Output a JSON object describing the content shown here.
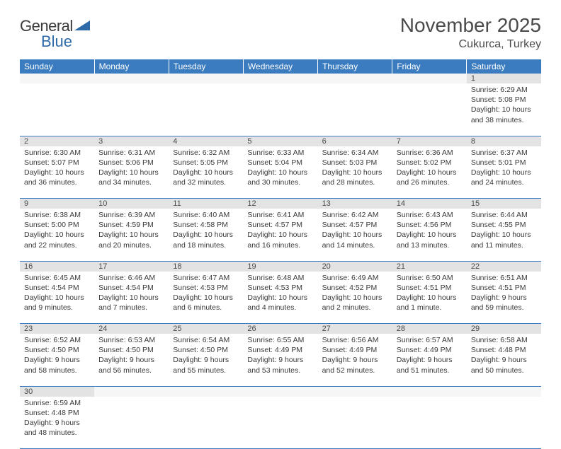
{
  "logo": {
    "part1": "General",
    "part2": "Blue"
  },
  "title": "November 2025",
  "location": "Cukurca, Turkey",
  "colors": {
    "header_bg": "#3b7bbf",
    "header_text": "#ffffff",
    "daynum_bg": "#e3e3e3",
    "rule": "#3b7bbf",
    "logo_accent": "#2f6aa8",
    "text": "#3a3a3a"
  },
  "weekdays": [
    "Sunday",
    "Monday",
    "Tuesday",
    "Wednesday",
    "Thursday",
    "Friday",
    "Saturday"
  ],
  "weeks": [
    [
      null,
      null,
      null,
      null,
      null,
      null,
      {
        "n": "1",
        "sr": "6:29 AM",
        "ss": "5:08 PM",
        "dl": "10 hours and 38 minutes."
      }
    ],
    [
      {
        "n": "2",
        "sr": "6:30 AM",
        "ss": "5:07 PM",
        "dl": "10 hours and 36 minutes."
      },
      {
        "n": "3",
        "sr": "6:31 AM",
        "ss": "5:06 PM",
        "dl": "10 hours and 34 minutes."
      },
      {
        "n": "4",
        "sr": "6:32 AM",
        "ss": "5:05 PM",
        "dl": "10 hours and 32 minutes."
      },
      {
        "n": "5",
        "sr": "6:33 AM",
        "ss": "5:04 PM",
        "dl": "10 hours and 30 minutes."
      },
      {
        "n": "6",
        "sr": "6:34 AM",
        "ss": "5:03 PM",
        "dl": "10 hours and 28 minutes."
      },
      {
        "n": "7",
        "sr": "6:36 AM",
        "ss": "5:02 PM",
        "dl": "10 hours and 26 minutes."
      },
      {
        "n": "8",
        "sr": "6:37 AM",
        "ss": "5:01 PM",
        "dl": "10 hours and 24 minutes."
      }
    ],
    [
      {
        "n": "9",
        "sr": "6:38 AM",
        "ss": "5:00 PM",
        "dl": "10 hours and 22 minutes."
      },
      {
        "n": "10",
        "sr": "6:39 AM",
        "ss": "4:59 PM",
        "dl": "10 hours and 20 minutes."
      },
      {
        "n": "11",
        "sr": "6:40 AM",
        "ss": "4:58 PM",
        "dl": "10 hours and 18 minutes."
      },
      {
        "n": "12",
        "sr": "6:41 AM",
        "ss": "4:57 PM",
        "dl": "10 hours and 16 minutes."
      },
      {
        "n": "13",
        "sr": "6:42 AM",
        "ss": "4:57 PM",
        "dl": "10 hours and 14 minutes."
      },
      {
        "n": "14",
        "sr": "6:43 AM",
        "ss": "4:56 PM",
        "dl": "10 hours and 13 minutes."
      },
      {
        "n": "15",
        "sr": "6:44 AM",
        "ss": "4:55 PM",
        "dl": "10 hours and 11 minutes."
      }
    ],
    [
      {
        "n": "16",
        "sr": "6:45 AM",
        "ss": "4:54 PM",
        "dl": "10 hours and 9 minutes."
      },
      {
        "n": "17",
        "sr": "6:46 AM",
        "ss": "4:54 PM",
        "dl": "10 hours and 7 minutes."
      },
      {
        "n": "18",
        "sr": "6:47 AM",
        "ss": "4:53 PM",
        "dl": "10 hours and 6 minutes."
      },
      {
        "n": "19",
        "sr": "6:48 AM",
        "ss": "4:53 PM",
        "dl": "10 hours and 4 minutes."
      },
      {
        "n": "20",
        "sr": "6:49 AM",
        "ss": "4:52 PM",
        "dl": "10 hours and 2 minutes."
      },
      {
        "n": "21",
        "sr": "6:50 AM",
        "ss": "4:51 PM",
        "dl": "10 hours and 1 minute."
      },
      {
        "n": "22",
        "sr": "6:51 AM",
        "ss": "4:51 PM",
        "dl": "9 hours and 59 minutes."
      }
    ],
    [
      {
        "n": "23",
        "sr": "6:52 AM",
        "ss": "4:50 PM",
        "dl": "9 hours and 58 minutes."
      },
      {
        "n": "24",
        "sr": "6:53 AM",
        "ss": "4:50 PM",
        "dl": "9 hours and 56 minutes."
      },
      {
        "n": "25",
        "sr": "6:54 AM",
        "ss": "4:50 PM",
        "dl": "9 hours and 55 minutes."
      },
      {
        "n": "26",
        "sr": "6:55 AM",
        "ss": "4:49 PM",
        "dl": "9 hours and 53 minutes."
      },
      {
        "n": "27",
        "sr": "6:56 AM",
        "ss": "4:49 PM",
        "dl": "9 hours and 52 minutes."
      },
      {
        "n": "28",
        "sr": "6:57 AM",
        "ss": "4:49 PM",
        "dl": "9 hours and 51 minutes."
      },
      {
        "n": "29",
        "sr": "6:58 AM",
        "ss": "4:48 PM",
        "dl": "9 hours and 50 minutes."
      }
    ],
    [
      {
        "n": "30",
        "sr": "6:59 AM",
        "ss": "4:48 PM",
        "dl": "9 hours and 48 minutes."
      },
      null,
      null,
      null,
      null,
      null,
      null
    ]
  ],
  "labels": {
    "sunrise": "Sunrise:",
    "sunset": "Sunset:",
    "daylight": "Daylight:"
  }
}
